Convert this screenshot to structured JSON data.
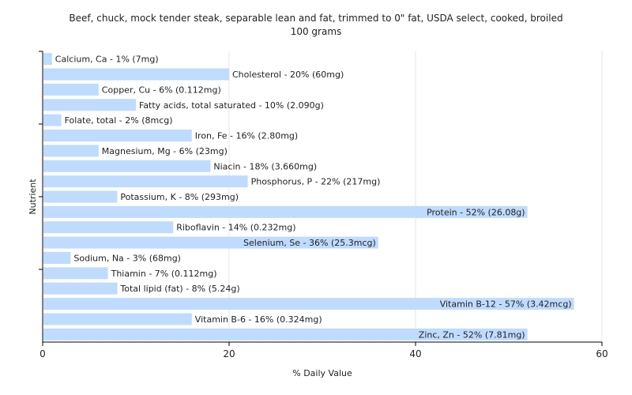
{
  "chart_data": {
    "type": "bar",
    "orientation": "horizontal",
    "title": "Beef, chuck, mock tender steak, separable lean and fat, trimmed to 0\" fat, USDA select, cooked, broiled",
    "subtitle": "100 grams",
    "xlabel": "% Daily Value",
    "ylabel": "Nutrient",
    "xlim": [
      0,
      60
    ],
    "xticks": [
      0,
      20,
      40,
      60
    ],
    "grid": true,
    "bar_color": "#bfdbff",
    "categories": [
      "Calcium, Ca",
      "Cholesterol",
      "Copper, Cu",
      "Fatty acids, total saturated",
      "Folate, total",
      "Iron, Fe",
      "Magnesium, Mg",
      "Niacin",
      "Phosphorus, P",
      "Potassium, K",
      "Protein",
      "Riboflavin",
      "Selenium, Se",
      "Sodium, Na",
      "Thiamin",
      "Total lipid (fat)",
      "Vitamin B-12",
      "Vitamin B-6",
      "Zinc, Zn"
    ],
    "values": [
      1,
      20,
      6,
      10,
      2,
      16,
      6,
      18,
      22,
      8,
      52,
      14,
      36,
      3,
      7,
      8,
      57,
      16,
      52
    ],
    "labels": [
      "Calcium, Ca - 1% (7mg)",
      "Cholesterol - 20% (60mg)",
      "Copper, Cu - 6% (0.112mg)",
      "Fatty acids, total saturated - 10% (2.090g)",
      "Folate, total - 2% (8mcg)",
      "Iron, Fe - 16% (2.80mg)",
      "Magnesium, Mg - 6% (23mg)",
      "Niacin - 18% (3.660mg)",
      "Phosphorus, P - 22% (217mg)",
      "Potassium, K - 8% (293mg)",
      "Protein - 52% (26.08g)",
      "Riboflavin - 14% (0.232mg)",
      "Selenium, Se - 36% (25.3mcg)",
      "Sodium, Na - 3% (68mg)",
      "Thiamin - 7% (0.112mg)",
      "Total lipid (fat) - 8% (5.24g)",
      "Vitamin B-12 - 57% (3.42mcg)",
      "Vitamin B-6 - 16% (0.324mg)",
      "Zinc, Zn - 52% (7.81mg)"
    ]
  }
}
